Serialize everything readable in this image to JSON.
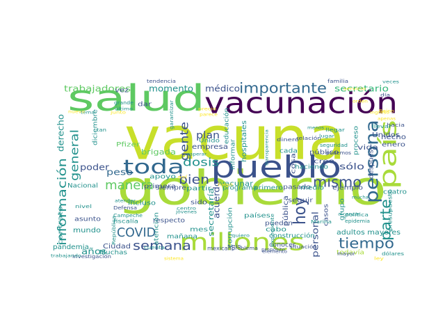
{
  "palette": {
    "lime": "#c8df2a",
    "yellow_green": "#a9db3a",
    "green": "#5ec962",
    "teal_green": "#35b779",
    "teal": "#21918c",
    "steel_blue": "#31688e",
    "indigo": "#3b528b",
    "deep_purple": "#440154",
    "purple": "#472d7b",
    "yellow": "#fde725"
  },
  "words": {
    "vacuna": "vacuna",
    "gobierno": "gobierno",
    "vacunacion": "vacunación",
    "salud": "salud",
    "pueblo": "pueblo",
    "millones": "millones",
    "pais": "país",
    "persona": "persona",
    "importante": "importante",
    "toda": "toda",
    "tiempo": "tiempo",
    "semana": "semana",
    "mismo": "mismo",
    "hoy": "hoy",
    "parte": "parte",
    "bien": "bien",
    "manera": "manera",
    "dosis": "dosis",
    "gente": "gente",
    "covid": "COVID",
    "general": "general",
    "informacion": "información",
    "derecho": "derecho",
    "trabajadores": "trabajadores",
    "momento": "momento",
    "medico": "médico",
    "secretario": "secretario",
    "personal": "personal",
    "plan": "plan",
    "peso": "peso",
    "poder": "poder",
    "brigada": "brigada",
    "anos": "años",
    "secretaria": "secretaría",
    "acuerdo": "acuerdo",
    "hecho": "hecho",
    "adultos_mayores": "adultos mayores",
    "hospitales": "hospitales",
    "solo": "sólo",
    "empresa": "empresa",
    "vacunar": "vacunar",
    "primera": "primera",
    "mundo": "mundo",
    "contrato": "contrato",
    "pandemia": "pandemia",
    "ciudad": "Ciudad",
    "muchas": "Muchas",
    "nacional": "Nacional",
    "diciembre": "diciembre",
    "apoyo": "apoyo",
    "siempre": "siempre",
    "partir": "partir",
    "programa": "programa",
    "primero": "primero",
    "pasado": "pasado",
    "medio": "medio",
    "ejemplo": "ejemplo",
    "mes": "mes",
    "paises": "países",
    "cabo": "cabo",
    "construccion": "construcción",
    "corrupcion": "corrupción",
    "manana": "mañana",
    "respecto": "respecto",
    "asunto": "asunto",
    "atencion": "atención",
    "unidos": "Unidos",
    "vida": "vida",
    "cosa": "cosa",
    "creo": "creo",
    "publico": "público",
    "publica": "pública",
    "pueden": "pueden",
    "seguir": "seguir",
    "casos": "casos",
    "grupo": "grupo",
    "proceso": "proceso",
    "despues": "después",
    "haciendo": "haciendo",
    "cada": "cada",
    "cuatro": "cuatro",
    "presupuesto": "presupuesto",
    "todavia": "todavía",
    "informar": "informar",
    "educacion": "educación",
    "pfizer": "Pfizer",
    "vez": "vez",
    "dar": "dar",
    "sido": "sido",
    "incluso": "incluso",
    "enero": "enero",
    "dinero": "dinero",
    "tendencia": "tendencia",
    "mexicano": "mexicano",
    "problema": "problema",
    "conocer": "conocer",
    "situacion": "situación",
    "proposito": "propósito",
    "investigacion": "investigación",
    "familia": "familia",
    "mayor": "mayor",
    "fiscalia": "fiscalía",
    "campeche": "Campeche",
    "marina": "Marina",
    "politica": "política",
    "dolares": "dólares",
    "quiero": "quiero",
    "seis": "seis",
    "elemento": "elemento",
    "defensa": "Defensa",
    "cuenta": "cuenta",
    "trabajando": "trabajando",
    "relacion": "relación",
    "seguridad": "seguridad",
    "podemos": "podemos",
    "hacia": "hacia",
    "llevar": "llevar",
    "unido": "Unido",
    "expediente": "expediente",
    "republica": "República",
    "jovenes": "jóvenes",
    "centro": "centro",
    "nivel": "nivel",
    "grande": "grande",
    "llegar": "llegar",
    "garantizar": "garantizar",
    "ultimo": "último",
    "epidemia": "epidemia",
    "alcanzar": "alcanzar",
    "veces": "veces",
    "dia": "día",
    "atender": "atender",
    "transparencia": "transparencia",
    "menos": "menos",
    "lugar": "lugar",
    "tema": "tema",
    "esperar": "esperar",
    "mucha": "mucha",
    "tan": "tan",
    "precio": "precio",
    "parece": "parece",
    "apenas": "apenas",
    "reino": "Reino",
    "ingreso": "ingreso",
    "asi": "así",
    "orden": "orden",
    "servicio": "servicio",
    "sistema": "sistema",
    "ley": "ley",
    "nuevo": "nuevo",
    "llego": "llegó",
    "junto": "junto"
  }
}
